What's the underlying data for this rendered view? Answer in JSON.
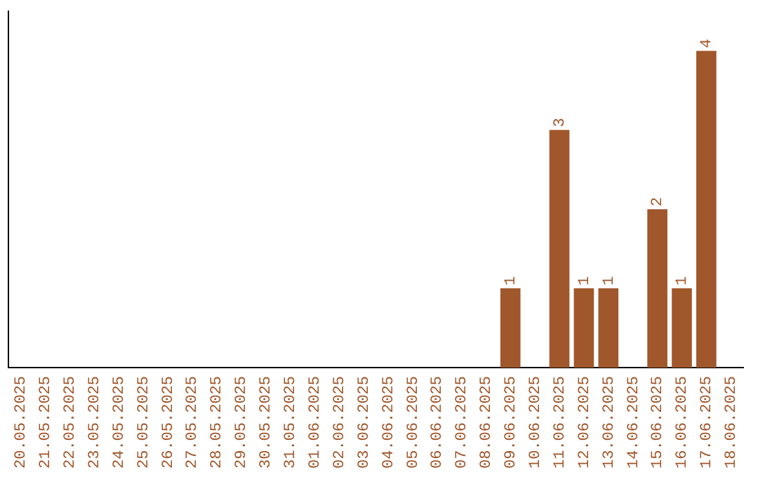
{
  "chart_data": {
    "type": "bar",
    "categories": [
      "20.05.2025",
      "21.05.2025",
      "22.05.2025",
      "23.05.2025",
      "24.05.2025",
      "25.05.2025",
      "26.05.2025",
      "27.05.2025",
      "28.05.2025",
      "29.05.2025",
      "30.05.2025",
      "31.05.2025",
      "01.06.2025",
      "02.06.2025",
      "03.06.2025",
      "04.06.2025",
      "05.06.2025",
      "06.06.2025",
      "07.06.2025",
      "08.06.2025",
      "09.06.2025",
      "10.06.2025",
      "11.06.2025",
      "12.06.2025",
      "13.06.2025",
      "14.06.2025",
      "15.06.2025",
      "16.06.2025",
      "17.06.2025",
      "18.06.2025"
    ],
    "values": [
      null,
      null,
      null,
      null,
      null,
      null,
      null,
      null,
      null,
      null,
      null,
      null,
      null,
      null,
      null,
      null,
      null,
      null,
      null,
      null,
      1,
      null,
      3,
      1,
      1,
      null,
      2,
      1,
      4,
      null
    ],
    "data_labels": true,
    "color": "#a0572b",
    "grid": false,
    "legend": false,
    "tick_labels": "x"
  }
}
